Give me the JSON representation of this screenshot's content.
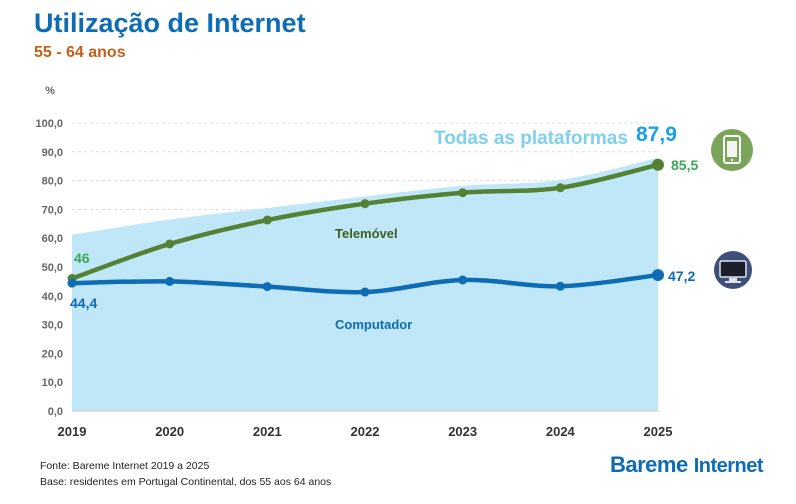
{
  "header": {
    "title": "Utilização de Internet",
    "subtitle": "55 - 64 anos"
  },
  "footer": {
    "source": "Fonte: Bareme Internet 2019 a 2025",
    "base": "Base: residentes em Portugal Continental, dos 55 aos 64 anos",
    "brand_main": "Bareme",
    "brand_sub": "Internet"
  },
  "chart_data": {
    "type": "line",
    "ylabel": "%",
    "ylim": [
      0,
      100
    ],
    "y_ticks": [
      "0,0",
      "10,0",
      "20,0",
      "30,0",
      "40,0",
      "50,0",
      "60,0",
      "70,0",
      "80,0",
      "90,0",
      "100,0"
    ],
    "categories": [
      "2019",
      "2020",
      "2021",
      "2022",
      "2023",
      "2024",
      "2025"
    ],
    "series": [
      {
        "name": "Todas as plataformas",
        "kind": "area",
        "color": "#bfe7f7",
        "values": [
          61.2,
          66.5,
          70.5,
          74.5,
          78.2,
          80.2,
          87.9
        ],
        "end_label": "87,9"
      },
      {
        "name": "Telemóvel",
        "kind": "line",
        "color": "#548235",
        "values": [
          46,
          58,
          66.3,
          72,
          75.8,
          77.5,
          85.5
        ],
        "start_label": "46",
        "end_label": "85,5",
        "icon": "smartphone-icon"
      },
      {
        "name": "Computador",
        "kind": "line",
        "color": "#0e6cb4",
        "values": [
          44.4,
          45,
          43.2,
          41.3,
          45.5,
          43.3,
          47.2
        ],
        "start_label": "44,4",
        "end_label": "47,2",
        "icon": "monitor-icon"
      }
    ]
  }
}
